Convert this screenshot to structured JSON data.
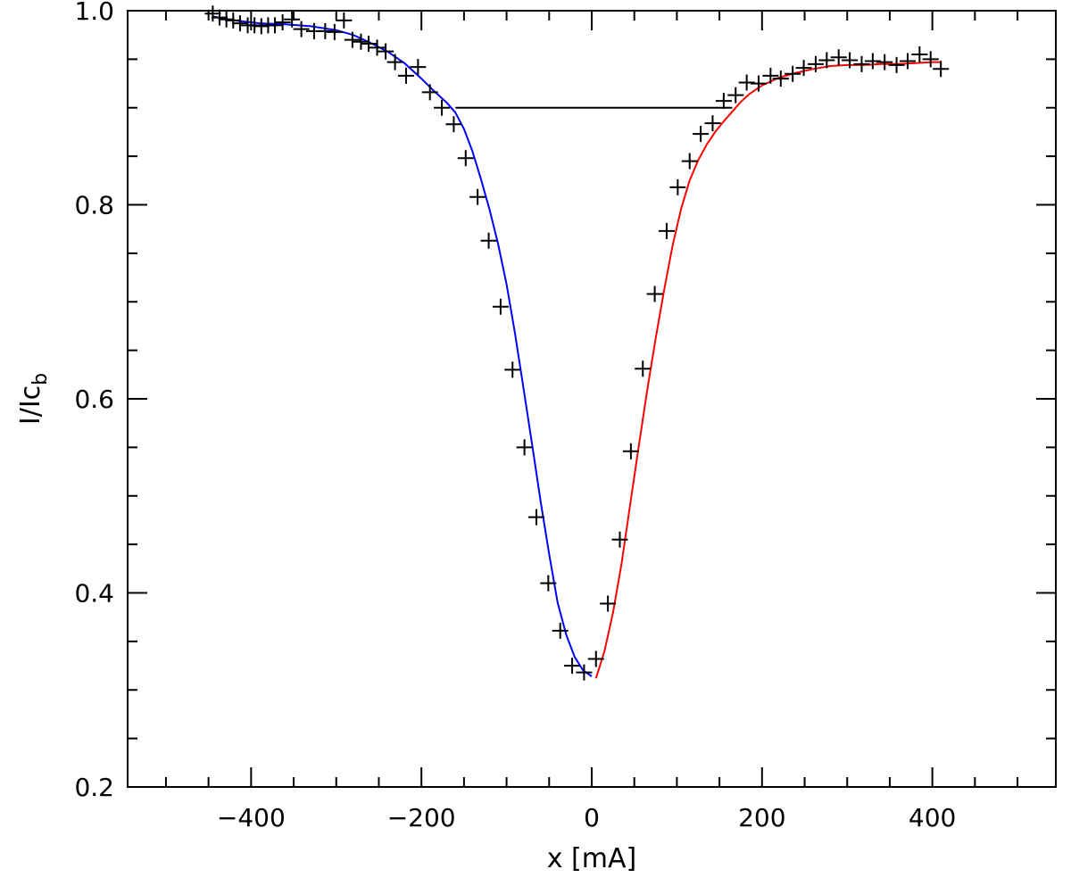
{
  "chart_data": {
    "type": "line",
    "xlabel": "x [mA]",
    "ylabel_main": "I/Ic",
    "ylabel_sub": "b",
    "xlim": [
      -545,
      545
    ],
    "ylim": [
      0.2,
      1.0
    ],
    "x_ticks": [
      {
        "value": -400,
        "label": "−400"
      },
      {
        "value": -200,
        "label": "−200"
      },
      {
        "value": 0,
        "label": "0"
      },
      {
        "value": 200,
        "label": "200"
      },
      {
        "value": 400,
        "label": "400"
      }
    ],
    "y_ticks": [
      {
        "value": 0.2,
        "label": "0.2"
      },
      {
        "value": 0.4,
        "label": "0.4"
      },
      {
        "value": 0.6,
        "label": "0.6"
      },
      {
        "value": 0.8,
        "label": "0.8"
      },
      {
        "value": 1.0,
        "label": "1.0"
      }
    ],
    "x_minor_step": 50,
    "y_minor_step": 0.05,
    "grid": false,
    "series": [
      {
        "kind": "scatter",
        "marker": "plus",
        "color": "#000000",
        "x": [
          -445,
          -437,
          -429,
          -421,
          -413,
          -404,
          -396,
          -388,
          -380,
          -372,
          -363,
          -352,
          -341,
          -326,
          -313,
          -302,
          -291,
          -281,
          -271,
          -262,
          -252,
          -242,
          -231,
          -218,
          -204,
          -190,
          -176,
          -162,
          -148,
          -134,
          -121,
          -107,
          -93,
          -79,
          -65,
          -51,
          -37,
          -23,
          -9,
          5,
          19,
          33,
          46,
          60,
          74,
          88,
          101,
          115,
          128,
          142,
          155,
          169,
          182,
          196,
          210,
          222,
          236,
          249,
          263,
          276,
          290,
          303,
          317,
          330,
          344,
          358,
          371,
          385,
          398,
          410
        ],
        "y": [
          0.997,
          0.993,
          0.991,
          0.99,
          0.987,
          0.985,
          0.985,
          0.984,
          0.985,
          0.985,
          0.988,
          0.991,
          0.981,
          0.979,
          0.979,
          0.978,
          0.99,
          0.97,
          0.968,
          0.966,
          0.962,
          0.958,
          0.947,
          0.933,
          0.942,
          0.916,
          0.9,
          0.883,
          0.848,
          0.808,
          0.763,
          0.695,
          0.63,
          0.55,
          0.478,
          0.41,
          0.361,
          0.325,
          0.318,
          0.332,
          0.389,
          0.455,
          0.546,
          0.631,
          0.708,
          0.773,
          0.818,
          0.845,
          0.873,
          0.884,
          0.907,
          0.913,
          0.926,
          0.925,
          0.933,
          0.93,
          0.935,
          0.941,
          0.945,
          0.949,
          0.952,
          0.949,
          0.945,
          0.948,
          0.947,
          0.944,
          0.948,
          0.955,
          0.95,
          0.94
        ]
      },
      {
        "kind": "line",
        "color": "#0000ff",
        "x": [
          -445,
          -420,
          -390,
          -360,
          -330,
          -300,
          -280,
          -260,
          -240,
          -220,
          -200,
          -185,
          -170,
          -160,
          -150,
          -140,
          -130,
          -120,
          -110,
          -100,
          -90,
          -80,
          -70,
          -60,
          -50,
          -40,
          -30,
          -20,
          -10,
          0
        ],
        "y": [
          0.994,
          0.99,
          0.987,
          0.986,
          0.984,
          0.98,
          0.975,
          0.967,
          0.958,
          0.946,
          0.93,
          0.917,
          0.905,
          0.895,
          0.878,
          0.855,
          0.826,
          0.795,
          0.76,
          0.718,
          0.667,
          0.61,
          0.553,
          0.494,
          0.44,
          0.39,
          0.357,
          0.334,
          0.32,
          0.314
        ]
      },
      {
        "kind": "line",
        "color": "#ff0000",
        "x": [
          5,
          15,
          25,
          35,
          45,
          55,
          65,
          75,
          85,
          95,
          105,
          115,
          125,
          135,
          145,
          155,
          165,
          175,
          185,
          200,
          220,
          240,
          260,
          280,
          300,
          320,
          340,
          360,
          380,
          400,
          410
        ],
        "y": [
          0.312,
          0.34,
          0.38,
          0.43,
          0.49,
          0.55,
          0.608,
          0.662,
          0.712,
          0.758,
          0.796,
          0.825,
          0.846,
          0.862,
          0.875,
          0.886,
          0.896,
          0.906,
          0.914,
          0.923,
          0.931,
          0.936,
          0.94,
          0.943,
          0.944,
          0.944,
          0.945,
          0.945,
          0.946,
          0.947,
          0.947
        ]
      },
      {
        "kind": "segment",
        "color": "#000000",
        "x": [
          -160,
          165
        ],
        "y": [
          0.9,
          0.9
        ]
      }
    ]
  }
}
